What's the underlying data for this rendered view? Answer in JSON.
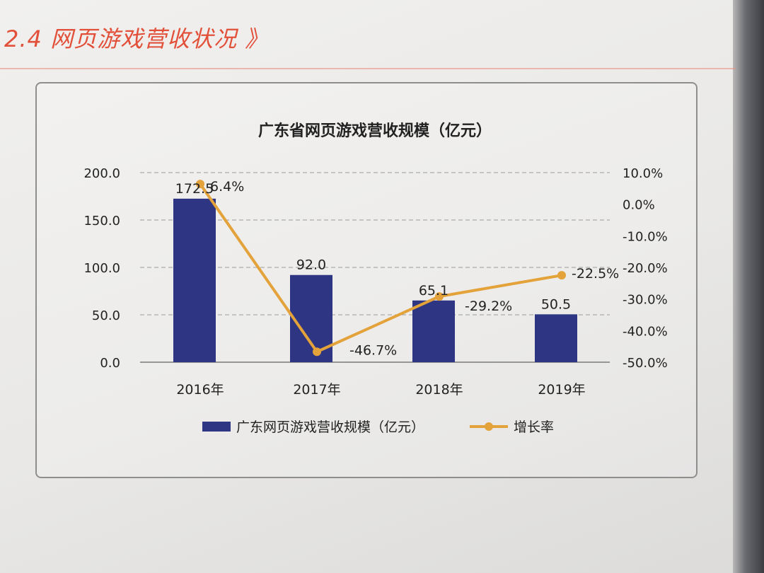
{
  "section": {
    "heading": "2.4 网页游戏营收状况 》"
  },
  "chart_data": {
    "type": "bar",
    "title": "广东省网页游戏营收规模（亿元）",
    "categories": [
      "2016年",
      "2017年",
      "2018年",
      "2019年"
    ],
    "series": [
      {
        "name": "广东网页游戏营收规模（亿元）",
        "kind": "bar",
        "axis": "left",
        "values": [
          172.5,
          92.0,
          65.1,
          50.5
        ],
        "labels": [
          "172.5",
          "92.0",
          "65.1",
          "50.5"
        ],
        "color": "#2e3583"
      },
      {
        "name": "增长率",
        "kind": "line",
        "axis": "right",
        "values": [
          6.4,
          -46.7,
          -29.2,
          -22.5
        ],
        "labels": [
          "6.4%",
          "-46.7%",
          "-29.2%",
          "-22.5%"
        ],
        "color": "#e3a23a"
      }
    ],
    "y_left": {
      "min": 0,
      "max": 200,
      "ticks": [
        "0.0",
        "50.0",
        "100.0",
        "150.0",
        "200.0"
      ]
    },
    "y_right": {
      "min": -50,
      "max": 10,
      "ticks": [
        "-50.0%",
        "-40.0%",
        "-30.0%",
        "-20.0%",
        "-10.0%",
        "0.0%",
        "10.0%"
      ]
    },
    "grid": true,
    "legend_position": "bottom"
  }
}
